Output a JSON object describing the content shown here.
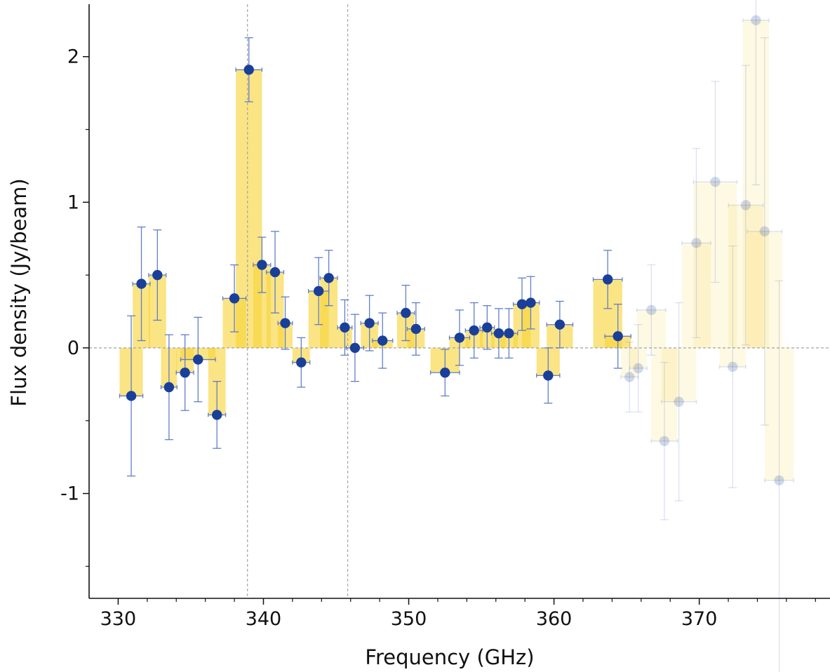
{
  "chart_data": {
    "type": "bar",
    "title": "",
    "xlabel": "Frequency (GHz)",
    "ylabel": "Flux density (Jy/beam)",
    "xlim": [
      328,
      379
    ],
    "ylim": [
      -1.72,
      2.36
    ],
    "xticks": [
      330,
      340,
      350,
      360,
      370
    ],
    "yticks": [
      -1,
      0,
      1,
      2
    ],
    "xtick_labels": [
      "330",
      "340",
      "350",
      "360",
      "370"
    ],
    "ytick_labels": [
      "-1",
      "0",
      "1",
      "2"
    ],
    "grid": false,
    "legend": "none",
    "reference_lines": {
      "horizontal_y": 0,
      "vertical_x": [
        338.9,
        345.8
      ]
    },
    "colors": {
      "bar": "#f7d439",
      "marker": "#1a3f99",
      "errorbar": "#5a78c8",
      "refline": "#aaaaaa"
    },
    "series": [
      {
        "bins": [
          {
            "x": 330.9,
            "y": -0.33,
            "xerr": 0.8,
            "yerr": 0.55
          },
          {
            "x": 331.6,
            "y": 0.44,
            "xerr": 0.6,
            "yerr": 0.39
          },
          {
            "x": 332.7,
            "y": 0.5,
            "xerr": 0.6,
            "yerr": 0.31
          },
          {
            "x": 333.5,
            "y": -0.27,
            "xerr": 0.55,
            "yerr": 0.36
          },
          {
            "x": 334.6,
            "y": -0.17,
            "xerr": 0.6,
            "yerr": 0.26
          },
          {
            "x": 335.5,
            "y": -0.08,
            "xerr": 1.2,
            "yerr": 0.29
          },
          {
            "x": 336.8,
            "y": -0.46,
            "xerr": 0.6,
            "yerr": 0.23
          },
          {
            "x": 338.0,
            "y": 0.34,
            "xerr": 0.8,
            "yerr": 0.23
          },
          {
            "x": 339.0,
            "y": 1.91,
            "xerr": 0.9,
            "yerr": 0.22
          },
          {
            "x": 339.9,
            "y": 0.57,
            "xerr": 0.6,
            "yerr": 0.19
          },
          {
            "x": 340.8,
            "y": 0.52,
            "xerr": 0.6,
            "yerr": 0.28
          },
          {
            "x": 341.5,
            "y": 0.17,
            "xerr": 0.5,
            "yerr": 0.18
          },
          {
            "x": 342.6,
            "y": -0.1,
            "xerr": 0.6,
            "yerr": 0.17
          },
          {
            "x": 343.8,
            "y": 0.39,
            "xerr": 0.7,
            "yerr": 0.23
          },
          {
            "x": 344.5,
            "y": 0.48,
            "xerr": 0.6,
            "yerr": 0.19
          },
          {
            "x": 345.6,
            "y": 0.14,
            "xerr": 0.5,
            "yerr": 0.19
          },
          {
            "x": 346.3,
            "y": 0.0,
            "xerr": 0.6,
            "yerr": 0.23
          },
          {
            "x": 347.3,
            "y": 0.17,
            "xerr": 0.6,
            "yerr": 0.19
          },
          {
            "x": 348.2,
            "y": 0.05,
            "xerr": 0.7,
            "yerr": 0.19
          },
          {
            "x": 349.8,
            "y": 0.24,
            "xerr": 0.6,
            "yerr": 0.19
          },
          {
            "x": 350.5,
            "y": 0.13,
            "xerr": 0.6,
            "yerr": 0.18
          },
          {
            "x": 352.5,
            "y": -0.17,
            "xerr": 1.0,
            "yerr": 0.16
          },
          {
            "x": 353.5,
            "y": 0.07,
            "xerr": 0.7,
            "yerr": 0.19
          },
          {
            "x": 354.5,
            "y": 0.12,
            "xerr": 0.6,
            "yerr": 0.19
          },
          {
            "x": 355.4,
            "y": 0.14,
            "xerr": 0.5,
            "yerr": 0.15
          },
          {
            "x": 356.2,
            "y": 0.1,
            "xerr": 0.5,
            "yerr": 0.17
          },
          {
            "x": 356.9,
            "y": 0.1,
            "xerr": 0.6,
            "yerr": 0.17
          },
          {
            "x": 357.8,
            "y": 0.3,
            "xerr": 0.6,
            "yerr": 0.18
          },
          {
            "x": 358.4,
            "y": 0.31,
            "xerr": 0.6,
            "yerr": 0.18
          },
          {
            "x": 359.6,
            "y": -0.19,
            "xerr": 0.8,
            "yerr": 0.19
          },
          {
            "x": 360.4,
            "y": 0.16,
            "xerr": 0.9,
            "yerr": 0.16
          },
          {
            "x": 363.7,
            "y": 0.47,
            "xerr": 1.0,
            "yerr": 0.2
          },
          {
            "x": 364.4,
            "y": 0.08,
            "xerr": 0.9,
            "yerr": 0.22
          },
          {
            "x": 365.2,
            "y": -0.2,
            "xerr": 0.6,
            "yerr": 0.24,
            "faded": true
          },
          {
            "x": 365.8,
            "y": -0.14,
            "xerr": 0.6,
            "yerr": 0.3,
            "faded": true
          },
          {
            "x": 366.7,
            "y": 0.26,
            "xerr": 1.0,
            "yerr": 0.31,
            "faded": true
          },
          {
            "x": 367.6,
            "y": -0.64,
            "xerr": 0.9,
            "yerr": 0.54,
            "faded": true
          },
          {
            "x": 368.6,
            "y": -0.37,
            "xerr": 1.2,
            "yerr": 0.68,
            "faded": true
          },
          {
            "x": 369.8,
            "y": 0.72,
            "xerr": 1.0,
            "yerr": 0.65,
            "faded": true
          },
          {
            "x": 371.1,
            "y": 1.14,
            "xerr": 1.5,
            "yerr": 0.69,
            "faded": true
          },
          {
            "x": 372.3,
            "y": -0.13,
            "xerr": 0.9,
            "yerr": 0.83,
            "faded": true
          },
          {
            "x": 373.2,
            "y": 0.98,
            "xerr": 1.2,
            "yerr": 0.96,
            "faded": true
          },
          {
            "x": 373.9,
            "y": 2.25,
            "xerr": 0.9,
            "yerr": 1.13,
            "faded": true
          },
          {
            "x": 374.5,
            "y": 0.8,
            "xerr": 1.2,
            "yerr": 1.33,
            "faded": true
          },
          {
            "x": 375.5,
            "y": -0.91,
            "xerr": 1.0,
            "yerr": 1.37,
            "faded": true
          }
        ]
      }
    ]
  }
}
